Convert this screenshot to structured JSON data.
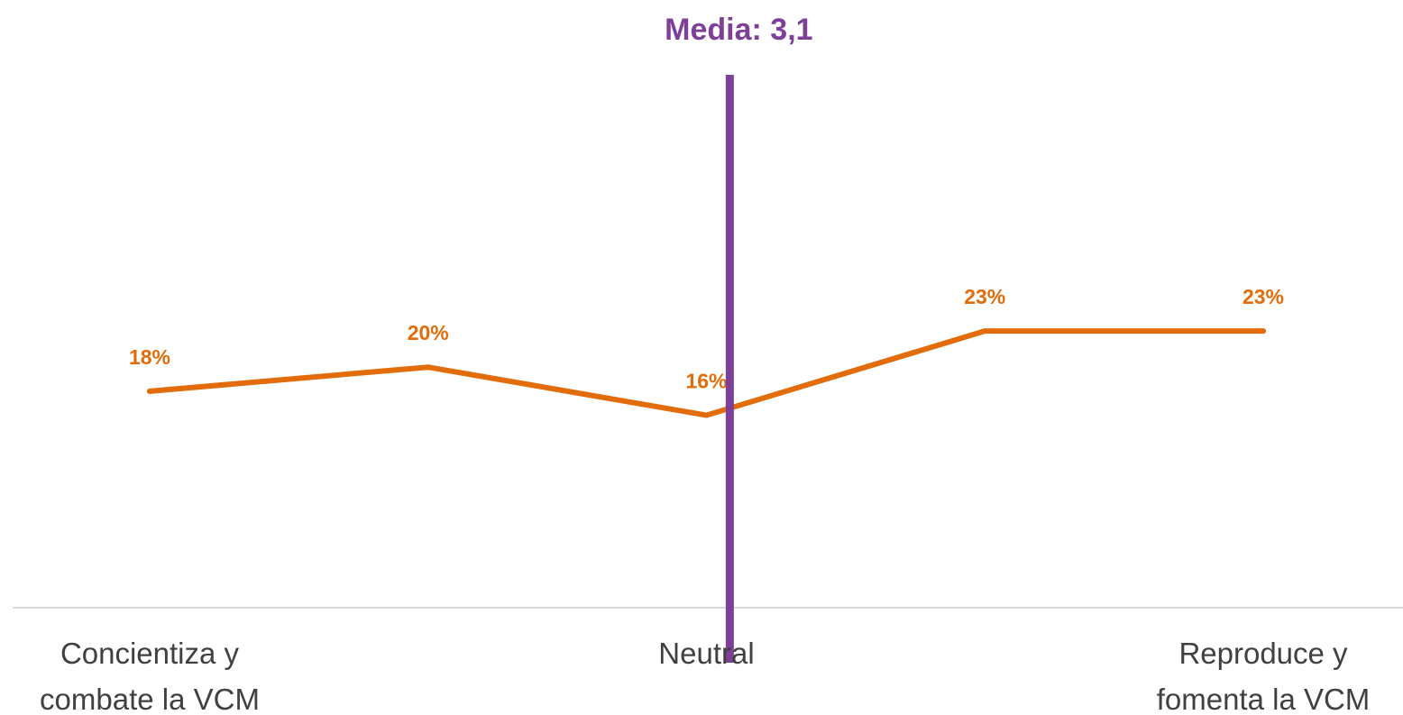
{
  "chart_data": {
    "type": "line",
    "x": [
      1,
      2,
      3,
      4,
      5
    ],
    "series": [
      {
        "values": [
          18,
          20,
          16,
          23,
          23
        ],
        "data_labels": [
          "18%",
          "20%",
          "16%",
          "23%",
          "23%"
        ]
      }
    ],
    "y_unit": "%",
    "ylim": [
      0,
      35
    ],
    "mean": {
      "value": 3.1,
      "label": "Media: 3,1"
    },
    "category_labels": [
      {
        "x": 1,
        "lines": [
          "Concientiza y",
          "combate la VCM"
        ]
      },
      {
        "x": 3,
        "lines": [
          "Neutral"
        ]
      },
      {
        "x": 5,
        "lines": [
          "Reproduce y",
          "fomenta la VCM"
        ]
      }
    ],
    "grid": false,
    "legend": "none"
  },
  "colors": {
    "series": "#E36C0A",
    "mean_line": "#7E3F98",
    "axis": "#D9D9D9",
    "category_text": "#404040"
  }
}
